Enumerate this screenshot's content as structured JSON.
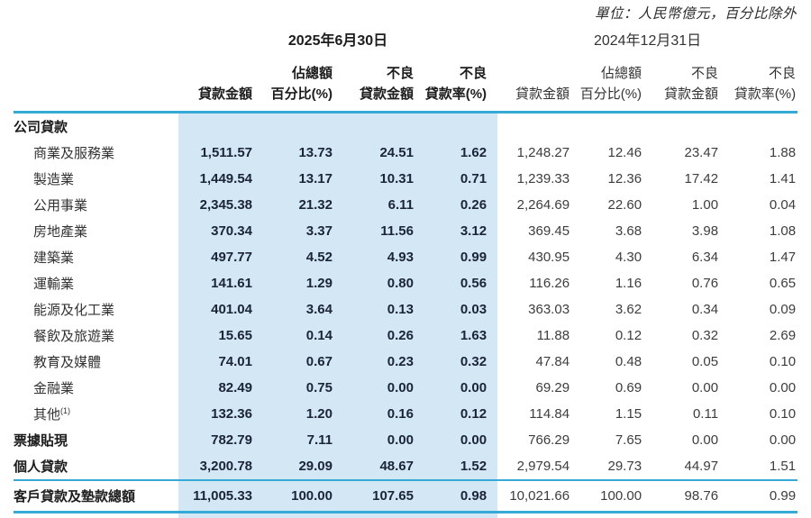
{
  "unit_note": "單位：人民幣億元，百分比除外",
  "colors": {
    "highlight_band": "#d3e7f5",
    "rule_line": "#35aad6",
    "numbers_2025": "#1b2438",
    "numbers_2024": "#3d3d3d",
    "label_text": "#333333"
  },
  "table": {
    "period_headers": [
      {
        "label": "2025年6月30日"
      },
      {
        "label": "2024年12月31日"
      }
    ],
    "column_headers": {
      "line1": [
        "",
        "佔總額",
        "不良",
        "不良"
      ],
      "line2": [
        "貸款金額",
        "百分比(%)",
        "貸款金額",
        "貸款率(%)"
      ]
    },
    "rows": [
      {
        "label": "公司貸款",
        "style": "section",
        "v2025": [
          "",
          "",
          "",
          ""
        ],
        "v2024": [
          "",
          "",
          "",
          ""
        ]
      },
      {
        "label": "商業及服務業",
        "style": "sub",
        "v2025": [
          "1,511.57",
          "13.73",
          "24.51",
          "1.62"
        ],
        "v2024": [
          "1,248.27",
          "12.46",
          "23.47",
          "1.88"
        ]
      },
      {
        "label": "製造業",
        "style": "sub",
        "v2025": [
          "1,449.54",
          "13.17",
          "10.31",
          "0.71"
        ],
        "v2024": [
          "1,239.33",
          "12.36",
          "17.42",
          "1.41"
        ]
      },
      {
        "label": "公用事業",
        "style": "sub",
        "v2025": [
          "2,345.38",
          "21.32",
          "6.11",
          "0.26"
        ],
        "v2024": [
          "2,264.69",
          "22.60",
          "1.00",
          "0.04"
        ]
      },
      {
        "label": "房地產業",
        "style": "sub",
        "v2025": [
          "370.34",
          "3.37",
          "11.56",
          "3.12"
        ],
        "v2024": [
          "369.45",
          "3.68",
          "3.98",
          "1.08"
        ]
      },
      {
        "label": "建築業",
        "style": "sub",
        "v2025": [
          "497.77",
          "4.52",
          "4.93",
          "0.99"
        ],
        "v2024": [
          "430.95",
          "4.30",
          "6.34",
          "1.47"
        ]
      },
      {
        "label": "運輸業",
        "style": "sub",
        "v2025": [
          "141.61",
          "1.29",
          "0.80",
          "0.56"
        ],
        "v2024": [
          "116.26",
          "1.16",
          "0.76",
          "0.65"
        ]
      },
      {
        "label": "能源及化工業",
        "style": "sub",
        "v2025": [
          "401.04",
          "3.64",
          "0.13",
          "0.03"
        ],
        "v2024": [
          "363.03",
          "3.62",
          "0.34",
          "0.09"
        ]
      },
      {
        "label": "餐飲及旅遊業",
        "style": "sub",
        "v2025": [
          "15.65",
          "0.14",
          "0.26",
          "1.63"
        ],
        "v2024": [
          "11.88",
          "0.12",
          "0.32",
          "2.69"
        ]
      },
      {
        "label": "教育及媒體",
        "style": "sub",
        "v2025": [
          "74.01",
          "0.67",
          "0.23",
          "0.32"
        ],
        "v2024": [
          "47.84",
          "0.48",
          "0.05",
          "0.10"
        ]
      },
      {
        "label": "金融業",
        "style": "sub",
        "v2025": [
          "82.49",
          "0.75",
          "0.00",
          "0.00"
        ],
        "v2024": [
          "69.29",
          "0.69",
          "0.00",
          "0.00"
        ]
      },
      {
        "label": "其他",
        "footnote": "(1)",
        "style": "sub",
        "v2025": [
          "132.36",
          "1.20",
          "0.16",
          "0.12"
        ],
        "v2024": [
          "114.84",
          "1.15",
          "0.11",
          "0.10"
        ]
      },
      {
        "label": "票據貼現",
        "style": "bold",
        "v2025": [
          "782.79",
          "7.11",
          "0.00",
          "0.00"
        ],
        "v2024": [
          "766.29",
          "7.65",
          "0.00",
          "0.00"
        ]
      },
      {
        "label": "個人貸款",
        "style": "bold",
        "v2025": [
          "3,200.78",
          "29.09",
          "48.67",
          "1.52"
        ],
        "v2024": [
          "2,979.54",
          "29.73",
          "44.97",
          "1.51"
        ]
      }
    ],
    "total_row": {
      "label": "客戶貸款及墊款總額",
      "v2025": [
        "11,005.33",
        "100.00",
        "107.65",
        "0.98"
      ],
      "v2024": [
        "10,021.66",
        "100.00",
        "98.76",
        "0.99"
      ]
    }
  }
}
